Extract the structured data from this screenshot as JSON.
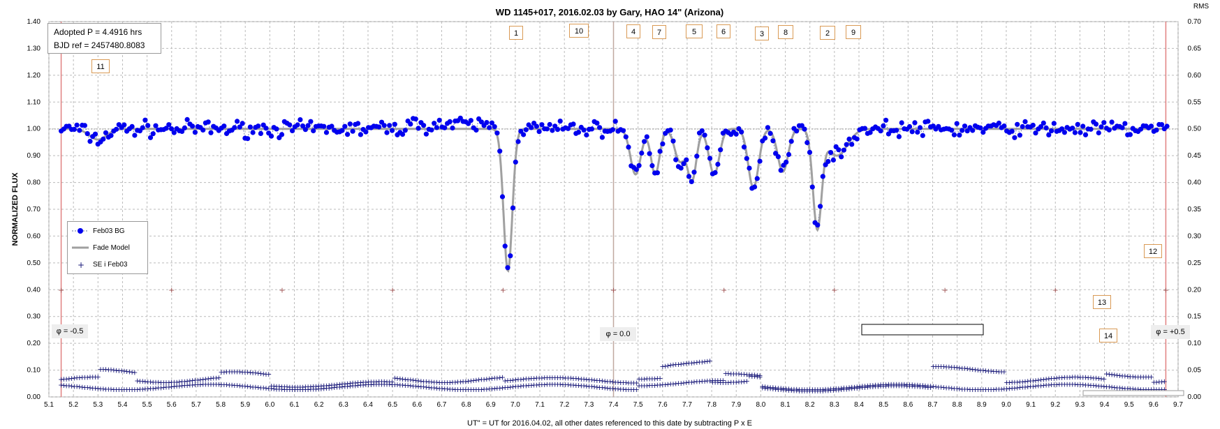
{
  "chart_data": {
    "type": "scatter",
    "title": "WD 1145+017,  2016.02.03  by Gary, HAO  14\" (Arizona)",
    "xlabel": "UT\" = UT for 2016.04.02, all other dates referenced to this date by subtracting P x E",
    "ylabel": "NORMALIZED FLUX",
    "y2label": "RMS",
    "xlim": [
      5.1,
      9.7
    ],
    "ylim": [
      0.0,
      1.4
    ],
    "y2lim": [
      0.0,
      0.7
    ],
    "x_ticks": [
      "5.1",
      "5.2",
      "5.3",
      "5.4",
      "5.5",
      "5.6",
      "5.7",
      "5.8",
      "5.9",
      "6.0",
      "6.1",
      "6.2",
      "6.3",
      "6.4",
      "6.5",
      "6.6",
      "6.7",
      "6.8",
      "6.9",
      "7.0",
      "7.1",
      "7.2",
      "7.3",
      "7.4",
      "7.5",
      "7.6",
      "7.7",
      "7.8",
      "7.9",
      "8.0",
      "8.1",
      "8.2",
      "8.3",
      "8.4",
      "8.5",
      "8.6",
      "8.7",
      "8.8",
      "8.9",
      "9.0",
      "9.1",
      "9.2",
      "9.3",
      "9.4",
      "9.5",
      "9.6",
      "9.7"
    ],
    "y_ticks": [
      "0.00",
      "0.10",
      "0.20",
      "0.30",
      "0.40",
      "0.50",
      "0.60",
      "0.70",
      "0.80",
      "0.90",
      "1.00",
      "1.10",
      "1.20",
      "1.30",
      "1.40"
    ],
    "y2_ticks": [
      "0.00",
      "0.05",
      "0.10",
      "0.15",
      "0.20",
      "0.25",
      "0.30",
      "0.35",
      "0.40",
      "0.45",
      "0.50",
      "0.55",
      "0.60",
      "0.65",
      "0.70"
    ],
    "grid": true,
    "legend_position": "left-middle",
    "colors": {
      "data": "#0000ee",
      "model": "#a0a0a0",
      "sei": "#1a1a7a",
      "phase_line": "#e08080",
      "ticks_marks": "#a05050"
    },
    "series": [
      {
        "name": "Feb03 BG",
        "type": "scatter-line"
      },
      {
        "name": "Fade Model",
        "type": "line"
      },
      {
        "name": "SE i Feb03",
        "type": "cross"
      }
    ],
    "dips": [
      {
        "center": 6.97,
        "depth": 0.53,
        "width": 0.025
      },
      {
        "center": 7.49,
        "depth": 0.17,
        "width": 0.03
      },
      {
        "center": 7.57,
        "depth": 0.17,
        "width": 0.025
      },
      {
        "center": 7.67,
        "depth": 0.12,
        "width": 0.03
      },
      {
        "center": 7.72,
        "depth": 0.19,
        "width": 0.025
      },
      {
        "center": 7.81,
        "depth": 0.17,
        "width": 0.03
      },
      {
        "center": 7.97,
        "depth": 0.22,
        "width": 0.03
      },
      {
        "center": 8.09,
        "depth": 0.16,
        "width": 0.03
      },
      {
        "center": 8.23,
        "depth": 0.36,
        "width": 0.025
      },
      {
        "center": 8.31,
        "depth": 0.1,
        "width": 0.06
      },
      {
        "center": 5.3,
        "depth": 0.04,
        "width": 0.05
      }
    ],
    "period_ticks_x": [
      5.15,
      5.6,
      6.05,
      6.5,
      6.95,
      7.4,
      7.85,
      8.3,
      8.75,
      9.2,
      9.65
    ],
    "period_ticks_y": 0.4,
    "phase_lines": [
      5.15,
      7.4,
      9.65
    ],
    "phase_labels": [
      "φ = -0.5",
      "φ = 0.0",
      "φ = +0.5"
    ],
    "annotations": [
      "1",
      "10",
      "4",
      "7",
      "5",
      "6",
      "3",
      "8",
      "2",
      "9",
      "11",
      "12",
      "13",
      "14"
    ]
  },
  "info_box": {
    "line1": "Adopted P = 4.4916  hrs",
    "line2": "BJD ref = 2457480.8083"
  }
}
